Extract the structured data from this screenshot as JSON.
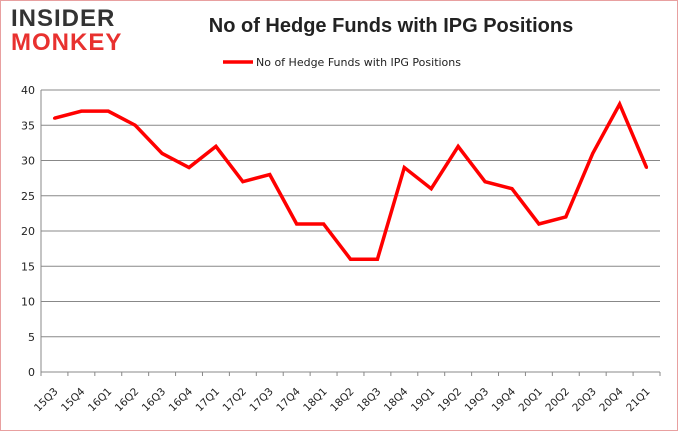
{
  "logo": {
    "line1": "INSIDER",
    "line2": "MONKEY"
  },
  "chart_data": {
    "type": "line",
    "title": "No of Hedge Funds with IPG Positions",
    "xlabel": "",
    "ylabel": "",
    "categories": [
      "15Q3",
      "15Q4",
      "16Q1",
      "16Q2",
      "16Q3",
      "16Q4",
      "17Q1",
      "17Q2",
      "17Q3",
      "17Q4",
      "18Q1",
      "18Q2",
      "18Q3",
      "18Q4",
      "19Q1",
      "19Q2",
      "19Q3",
      "19Q4",
      "20Q1",
      "20Q2",
      "20Q3",
      "20Q4",
      "21Q1"
    ],
    "series": [
      {
        "name": "No of Hedge Funds with IPG Positions",
        "color": "#ff0000",
        "values": [
          36,
          37,
          37,
          35,
          31,
          29,
          32,
          27,
          28,
          21,
          21,
          16,
          16,
          29,
          26,
          32,
          27,
          26,
          21,
          22,
          31,
          38,
          29
        ]
      }
    ],
    "ylim": [
      0,
      40
    ],
    "yticks": [
      0,
      5,
      10,
      15,
      20,
      25,
      30,
      35,
      40
    ],
    "grid": true,
    "legend": "top-center"
  }
}
